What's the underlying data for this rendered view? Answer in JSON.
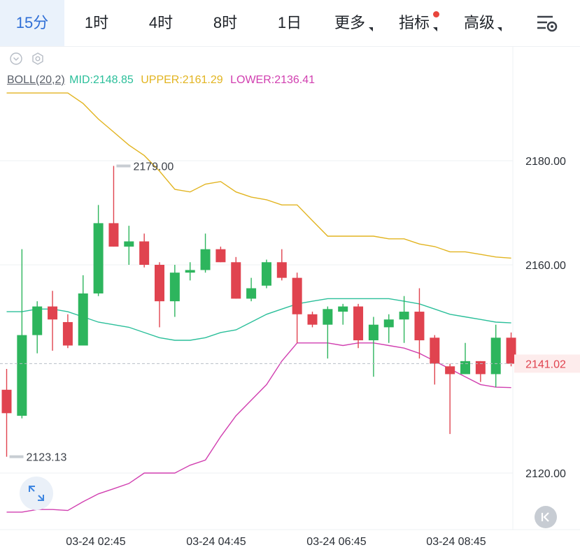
{
  "toolbar": {
    "tabs": [
      "15分",
      "1时",
      "4时",
      "8时",
      "1日",
      "更多",
      "指标",
      "高级"
    ],
    "active_index": 0
  },
  "indicator": {
    "name": "BOLL(20,2)",
    "mid_label": "MID:2148.85",
    "upper_label": "UPPER:2161.29",
    "lower_label": "LOWER:2136.41",
    "mid_color": "#2bbf9a",
    "upper_color": "#e2b420",
    "lower_color": "#d13fb0"
  },
  "colors": {
    "up": "#2db55d",
    "down": "#e0434f",
    "grid": "#eef0f3",
    "axis_text": "#2a2f36",
    "price_tag": "#e0434f"
  },
  "icons": [
    "settings-icon",
    "collapse-icon",
    "gear-icon",
    "expand-icon",
    "k-icon"
  ],
  "chart_data": {
    "type": "candlestick",
    "y_ticks": [
      "2180.00",
      "2160.00",
      "2120.00"
    ],
    "x_ticks": [
      "03-24 02:45",
      "03-24 04:45",
      "03-24 06:45",
      "03-24 08:45"
    ],
    "current_price": "2141.02",
    "max_label": "2179.00",
    "min_label": "2123.13",
    "candles": [
      {
        "o": 2136.0,
        "h": 2140.0,
        "l": 2123.13,
        "c": 2131.5
      },
      {
        "o": 2131.0,
        "h": 2163.0,
        "l": 2130.5,
        "c": 2146.5
      },
      {
        "o": 2146.5,
        "h": 2153.0,
        "l": 2143.0,
        "c": 2152.0
      },
      {
        "o": 2152.0,
        "h": 2155.0,
        "l": 2143.5,
        "c": 2149.5
      },
      {
        "o": 2149.0,
        "h": 2150.5,
        "l": 2144.0,
        "c": 2144.5
      },
      {
        "o": 2144.5,
        "h": 2158.0,
        "l": 2144.5,
        "c": 2154.5
      },
      {
        "o": 2154.5,
        "h": 2171.5,
        "l": 2154.0,
        "c": 2168.0
      },
      {
        "o": 2168.0,
        "h": 2179.0,
        "l": 2163.5,
        "c": 2163.5
      },
      {
        "o": 2163.5,
        "h": 2167.5,
        "l": 2160.0,
        "c": 2164.5
      },
      {
        "o": 2164.5,
        "h": 2166.0,
        "l": 2159.5,
        "c": 2160.0
      },
      {
        "o": 2160.0,
        "h": 2160.5,
        "l": 2148.0,
        "c": 2153.0
      },
      {
        "o": 2153.0,
        "h": 2160.0,
        "l": 2150.0,
        "c": 2158.5
      },
      {
        "o": 2158.5,
        "h": 2160.5,
        "l": 2157.0,
        "c": 2159.0
      },
      {
        "o": 2159.0,
        "h": 2166.0,
        "l": 2158.5,
        "c": 2163.0
      },
      {
        "o": 2163.0,
        "h": 2163.5,
        "l": 2160.5,
        "c": 2160.5
      },
      {
        "o": 2160.5,
        "h": 2161.5,
        "l": 2153.5,
        "c": 2153.5
      },
      {
        "o": 2153.5,
        "h": 2157.5,
        "l": 2153.0,
        "c": 2155.5
      },
      {
        "o": 2156.0,
        "h": 2161.0,
        "l": 2155.5,
        "c": 2160.5
      },
      {
        "o": 2160.5,
        "h": 2163.0,
        "l": 2157.0,
        "c": 2157.5
      },
      {
        "o": 2157.5,
        "h": 2158.5,
        "l": 2145.0,
        "c": 2150.5
      },
      {
        "o": 2150.5,
        "h": 2151.0,
        "l": 2148.0,
        "c": 2148.5
      },
      {
        "o": 2148.5,
        "h": 2152.0,
        "l": 2142.0,
        "c": 2151.5
      },
      {
        "o": 2151.0,
        "h": 2152.5,
        "l": 2148.5,
        "c": 2152.0
      },
      {
        "o": 2152.0,
        "h": 2152.5,
        "l": 2144.0,
        "c": 2145.5
      },
      {
        "o": 2145.5,
        "h": 2150.0,
        "l": 2138.5,
        "c": 2148.5
      },
      {
        "o": 2148.0,
        "h": 2150.5,
        "l": 2145.0,
        "c": 2149.5
      },
      {
        "o": 2149.5,
        "h": 2154.0,
        "l": 2145.0,
        "c": 2151.0
      },
      {
        "o": 2151.0,
        "h": 2155.5,
        "l": 2142.0,
        "c": 2145.5
      },
      {
        "o": 2146.0,
        "h": 2146.5,
        "l": 2137.0,
        "c": 2141.0
      },
      {
        "o": 2140.5,
        "h": 2141.0,
        "l": 2127.5,
        "c": 2139.0
      },
      {
        "o": 2139.0,
        "h": 2145.0,
        "l": 2139.0,
        "c": 2141.5
      },
      {
        "o": 2141.5,
        "h": 2141.5,
        "l": 2137.5,
        "c": 2139.0
      },
      {
        "o": 2139.0,
        "h": 2148.5,
        "l": 2136.5,
        "c": 2146.0
      },
      {
        "o": 2146.0,
        "h": 2147.0,
        "l": 2140.5,
        "c": 2141.0
      }
    ],
    "boll_upper": [
      2193.0,
      2193.0,
      2193.0,
      2193.0,
      2193.0,
      2191.0,
      2188.0,
      2185.5,
      2183.0,
      2181.0,
      2178.0,
      2174.5,
      2174.0,
      2175.5,
      2176.0,
      2174.0,
      2173.0,
      2172.5,
      2171.5,
      2171.5,
      2168.5,
      2165.5,
      2165.5,
      2165.5,
      2165.5,
      2165.0,
      2165.0,
      2164.0,
      2163.5,
      2162.5,
      2162.5,
      2162.0,
      2161.5,
      2161.29
    ],
    "boll_mid": [
      2151.0,
      2151.0,
      2151.5,
      2151.5,
      2151.0,
      2150.0,
      2149.0,
      2148.5,
      2148.0,
      2147.0,
      2146.0,
      2145.5,
      2145.5,
      2146.0,
      2147.0,
      2147.5,
      2149.0,
      2150.5,
      2151.5,
      2152.5,
      2153.0,
      2153.5,
      2153.5,
      2153.5,
      2153.5,
      2153.5,
      2153.0,
      2152.5,
      2151.5,
      2150.5,
      2150.0,
      2149.5,
      2149.0,
      2148.85
    ],
    "boll_lower": [
      2112.5,
      2112.5,
      2113.0,
      2113.0,
      2112.8,
      2114.5,
      2116.0,
      2117.0,
      2118.0,
      2120.0,
      2120.0,
      2120.0,
      2121.5,
      2122.5,
      2127.0,
      2131.0,
      2134.0,
      2137.0,
      2141.5,
      2145.0,
      2145.0,
      2145.0,
      2144.5,
      2145.0,
      2145.0,
      2144.5,
      2144.0,
      2143.0,
      2141.5,
      2140.0,
      2138.5,
      2137.0,
      2136.5,
      2136.41
    ]
  }
}
